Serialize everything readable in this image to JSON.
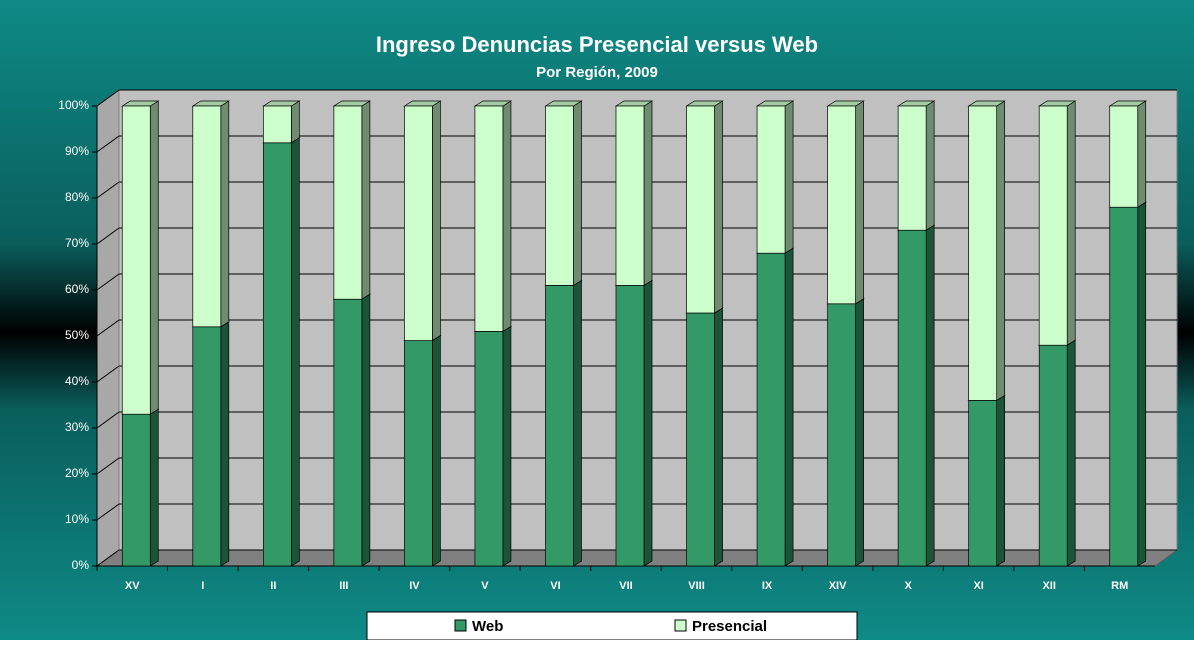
{
  "chart_data": {
    "type": "bar",
    "stacked": true,
    "title": "Ingreso Denuncias Presencial versus Web",
    "subtitle": "Por Región,  2009",
    "categories": [
      "XV",
      "I",
      "II",
      "III",
      "IV",
      "V",
      "VI",
      "VII",
      "VIII",
      "IX",
      "XIV",
      "X",
      "XI",
      "XII",
      "RM"
    ],
    "series": [
      {
        "name": "Web",
        "color": "#339966",
        "values": [
          33,
          52,
          92,
          58,
          49,
          51,
          61,
          61,
          55,
          68,
          57,
          73,
          36,
          48,
          78
        ]
      },
      {
        "name": "Presencial",
        "color": "#ccffcc",
        "values": [
          67,
          48,
          8,
          42,
          51,
          49,
          39,
          39,
          45,
          32,
          43,
          27,
          64,
          52,
          22
        ]
      }
    ],
    "ylim": [
      0,
      100
    ],
    "yticks": [
      {
        "value": 0,
        "label": "0%"
      },
      {
        "value": 10,
        "label": "10%"
      },
      {
        "value": 20,
        "label": "20%"
      },
      {
        "value": 30,
        "label": "30%"
      },
      {
        "value": 40,
        "label": "40%"
      },
      {
        "value": 50,
        "label": "50%"
      },
      {
        "value": 60,
        "label": "60%"
      },
      {
        "value": 70,
        "label": "70%"
      },
      {
        "value": 80,
        "label": "80%"
      },
      {
        "value": 90,
        "label": "90%"
      },
      {
        "value": 100,
        "label": "100%"
      }
    ],
    "grid": true,
    "legend": "bottom"
  }
}
